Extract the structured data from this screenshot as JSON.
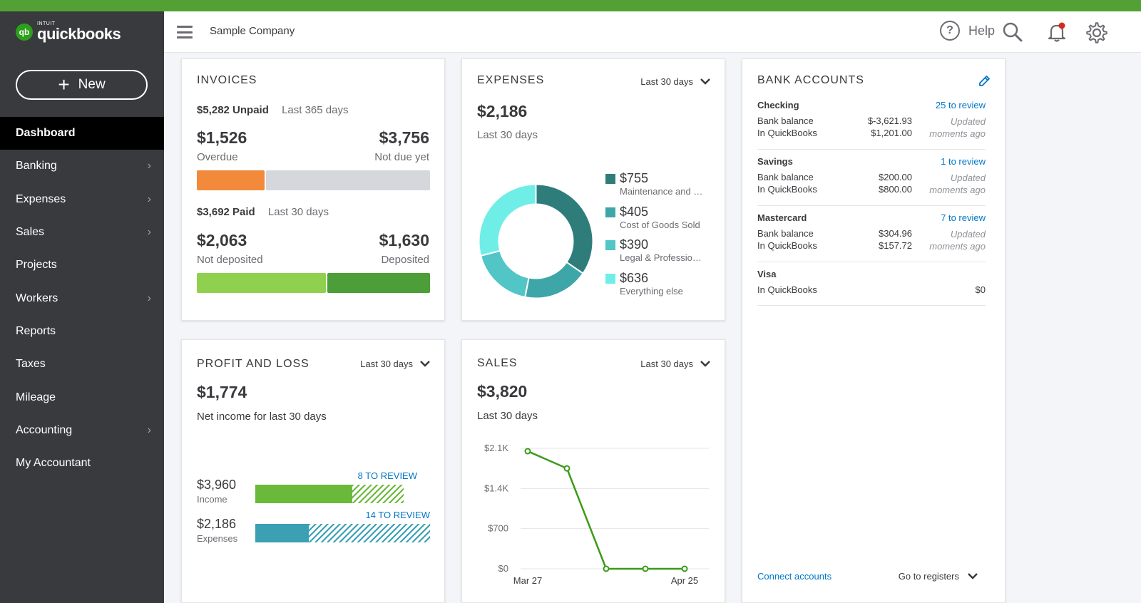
{
  "app": {
    "brand_sub": "INTUIT",
    "brand": "quickbooks",
    "badge": "qb",
    "company": "Sample Company"
  },
  "colors": {
    "top_bar": "#53a134",
    "sidebar": "#393a3d",
    "accent_link": "#0077c5",
    "overdue": "#f2893b",
    "not_due": "#d4d7dc",
    "not_deposited": "#8fd14f",
    "deposited": "#4c9e38",
    "income_bar": "#6ab93a",
    "expenses_bar": "#3ba0b3",
    "donut": [
      "#2f7d7b",
      "#3ea6a8",
      "#52c5c7",
      "#6feee8"
    ],
    "sales_line": "#3a9a19"
  },
  "sidebar": {
    "new_label": "New",
    "items": [
      {
        "label": "Dashboard",
        "active": true,
        "has_chevron": false
      },
      {
        "label": "Banking",
        "has_chevron": true
      },
      {
        "label": "Expenses",
        "has_chevron": true
      },
      {
        "label": "Sales",
        "has_chevron": true
      },
      {
        "label": "Projects",
        "has_chevron": false
      },
      {
        "label": "Workers",
        "has_chevron": true
      },
      {
        "label": "Reports",
        "has_chevron": false
      },
      {
        "label": "Taxes",
        "has_chevron": false
      },
      {
        "label": "Mileage",
        "has_chevron": false
      },
      {
        "label": "Accounting",
        "has_chevron": true
      },
      {
        "label": "My Accountant",
        "has_chevron": false
      }
    ]
  },
  "header": {
    "help_label": "Help",
    "icons": [
      "menu-icon",
      "help-icon",
      "search-icon",
      "bell-icon",
      "gear-icon"
    ]
  },
  "invoices": {
    "title": "INVOICES",
    "unpaid": "$5,282 Unpaid",
    "unpaid_period": "Last 365 days",
    "overdue_amount": "$1,526",
    "overdue_label": "Overdue",
    "not_due_amount": "$3,756",
    "not_due_label": "Not due yet",
    "paid": "$3,692 Paid",
    "paid_period": "Last 30 days",
    "not_deposited_amount": "$2,063",
    "not_deposited_label": "Not deposited",
    "deposited_amount": "$1,630",
    "deposited_label": "Deposited"
  },
  "expenses": {
    "title": "EXPENSES",
    "period": "Last 30 days",
    "total": "$2,186",
    "total_label": "Last 30 days",
    "legend": [
      {
        "amount": "$755",
        "label": "Maintenance and …",
        "value": 755
      },
      {
        "amount": "$405",
        "label": "Cost of Goods Sold",
        "value": 405
      },
      {
        "amount": "$390",
        "label": "Legal & Professio…",
        "value": 390
      },
      {
        "amount": "$636",
        "label": "Everything else",
        "value": 636
      }
    ]
  },
  "bank": {
    "title": "BANK ACCOUNTS",
    "accounts": [
      {
        "name": "Checking",
        "review": "25 to review",
        "bank_label": "Bank balance",
        "bank_amount": "$-3,621.93",
        "qb_label": "In QuickBooks",
        "qb_amount": "$1,201.00",
        "updated": "Updated moments ago"
      },
      {
        "name": "Savings",
        "review": "1 to review",
        "bank_label": "Bank balance",
        "bank_amount": "$200.00",
        "qb_label": "In QuickBooks",
        "qb_amount": "$800.00",
        "updated": "Updated moments ago"
      },
      {
        "name": "Mastercard",
        "review": "7 to review",
        "bank_label": "Bank balance",
        "bank_amount": "$304.96",
        "qb_label": "In QuickBooks",
        "qb_amount": "$157.72",
        "updated": "Updated moments ago"
      },
      {
        "name": "Visa",
        "qb_label": "In QuickBooks",
        "qb_amount": "$0"
      }
    ],
    "connect": "Connect accounts",
    "registers": "Go to registers"
  },
  "pnl": {
    "title": "PROFIT AND LOSS",
    "period": "Last 30 days",
    "net": "$1,774",
    "net_label": "Net income for last 30 days",
    "income_amount": "$3,960",
    "income_label": "Income",
    "income_review": "8 TO REVIEW",
    "expenses_amount": "$2,186",
    "expenses_label": "Expenses",
    "expenses_review": "14 TO REVIEW"
  },
  "sales": {
    "title": "SALES",
    "period": "Last 30 days",
    "total": "$3,820",
    "total_label": "Last 30 days"
  },
  "chart_data": {
    "type": "line",
    "x": [
      "Mar 27",
      "",
      "",
      "",
      "Apr 25"
    ],
    "x_tick_labels": [
      "Mar 27",
      "Apr 25"
    ],
    "series": [
      {
        "values": [
          2050,
          1750,
          0,
          0,
          0
        ]
      }
    ],
    "y_ticks": [
      "$2.1K",
      "$1.4K",
      "$700",
      "$0"
    ],
    "ylim": [
      0,
      2100
    ],
    "grid": true
  }
}
